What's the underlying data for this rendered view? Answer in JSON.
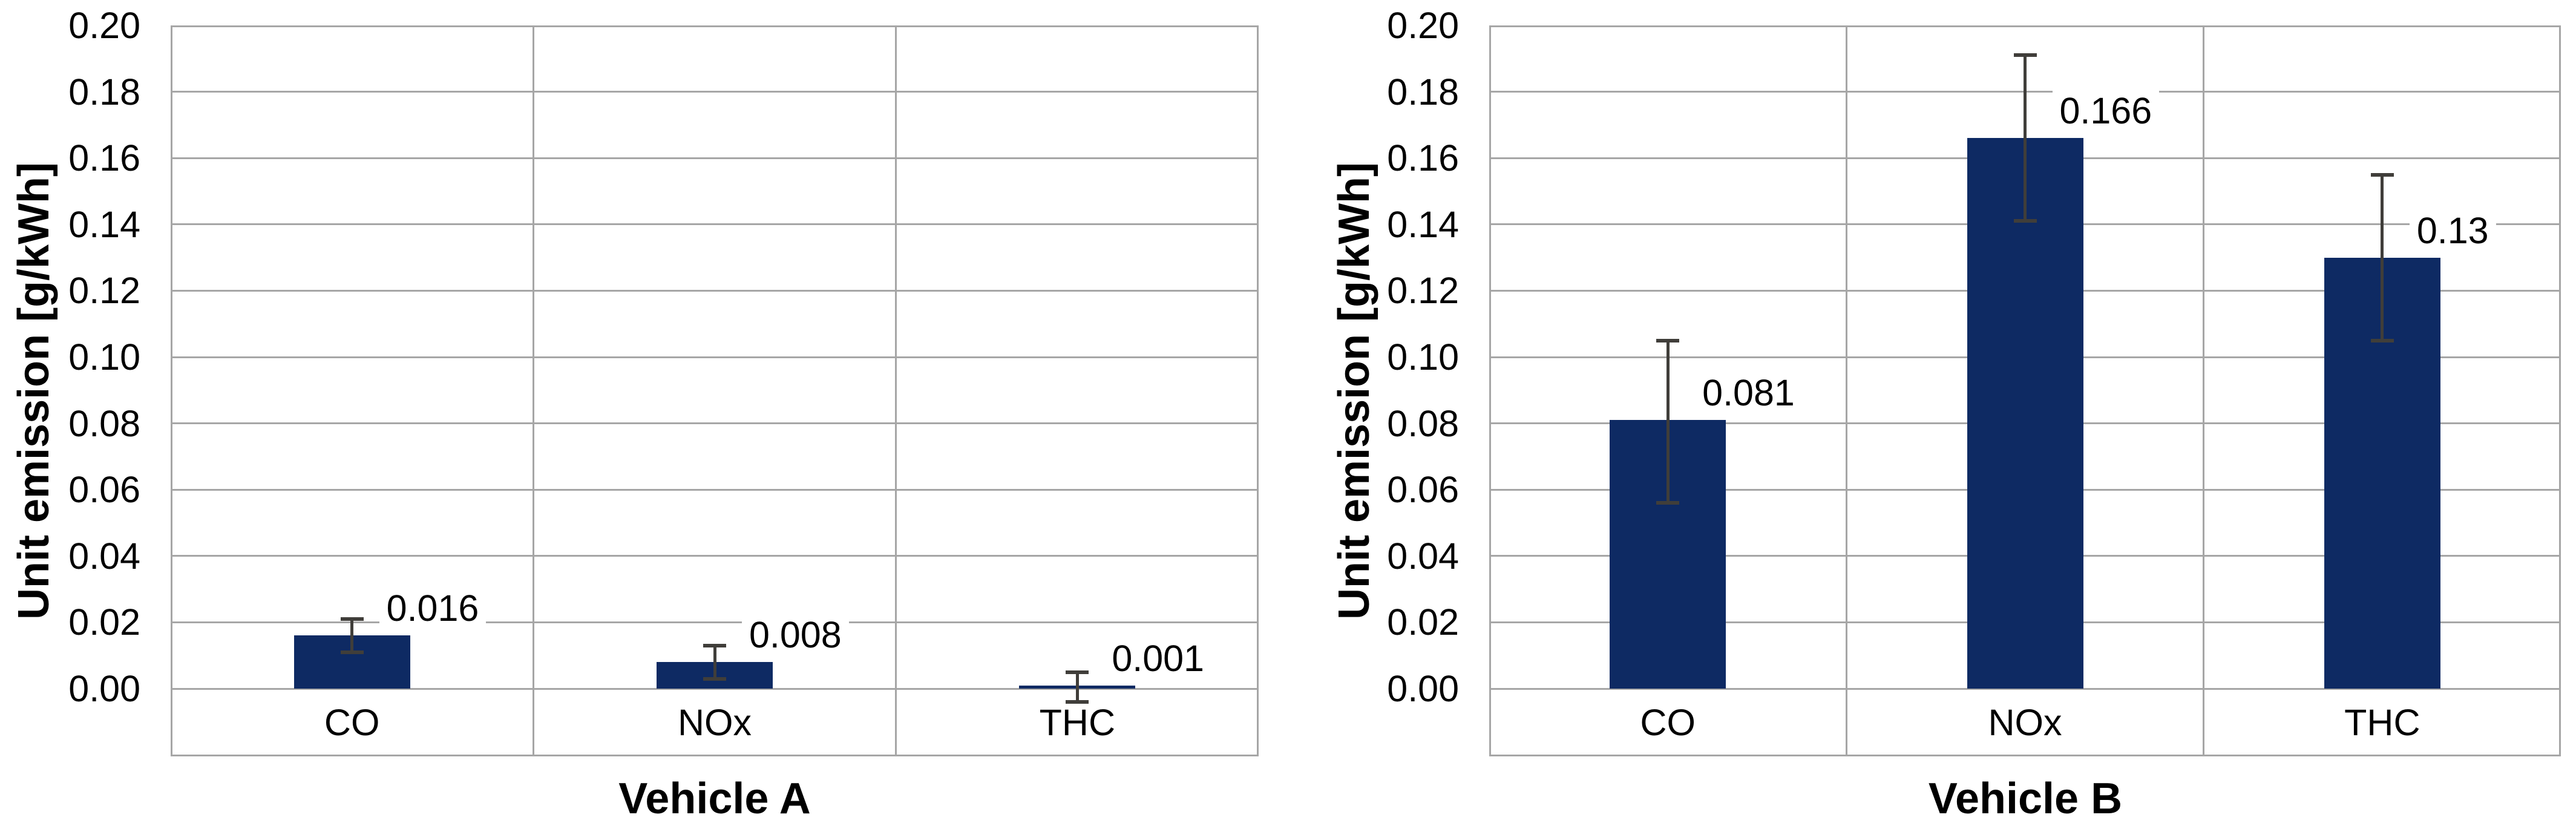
{
  "figure": {
    "background": "#FFFFFF"
  },
  "chart_data": [
    {
      "type": "bar",
      "title": "",
      "xlabel": "Vehicle A",
      "ylabel": "Unit emission [g/kWh]",
      "categories": [
        "CO",
        "NOx",
        "THC"
      ],
      "values": [
        0.016,
        0.008,
        0.001
      ],
      "data_labels": [
        "0.016",
        "0.008",
        "0.001"
      ],
      "error_low": [
        0.011,
        0.003,
        -0.004
      ],
      "error_high": [
        0.021,
        0.013,
        0.005
      ],
      "ylim": [
        0,
        0.2
      ],
      "ytick_step": 0.02,
      "ytick_labels": [
        "0.00",
        "0.02",
        "0.04",
        "0.06",
        "0.08",
        "0.10",
        "0.12",
        "0.14",
        "0.16",
        "0.18",
        "0.20"
      ],
      "grid": true,
      "legend": "none",
      "bar_color": "#0E2A63",
      "error_color": "#403E3A",
      "grid_color": "#A6A6A6"
    },
    {
      "type": "bar",
      "title": "",
      "xlabel": "Vehicle B",
      "ylabel": "Unit emission [g/kWh]",
      "categories": [
        "CO",
        "NOx",
        "THC"
      ],
      "values": [
        0.081,
        0.166,
        0.13
      ],
      "data_labels": [
        "0.081",
        "0.166",
        "0.13"
      ],
      "error_low": [
        0.056,
        0.141,
        0.105
      ],
      "error_high": [
        0.105,
        0.191,
        0.155
      ],
      "ylim": [
        0,
        0.2
      ],
      "ytick_step": 0.02,
      "ytick_labels": [
        "0.00",
        "0.02",
        "0.04",
        "0.06",
        "0.08",
        "0.10",
        "0.12",
        "0.14",
        "0.16",
        "0.18",
        "0.20"
      ],
      "grid": true,
      "legend": "none",
      "bar_color": "#0E2A63",
      "error_color": "#403E3A",
      "grid_color": "#A6A6A6"
    }
  ]
}
